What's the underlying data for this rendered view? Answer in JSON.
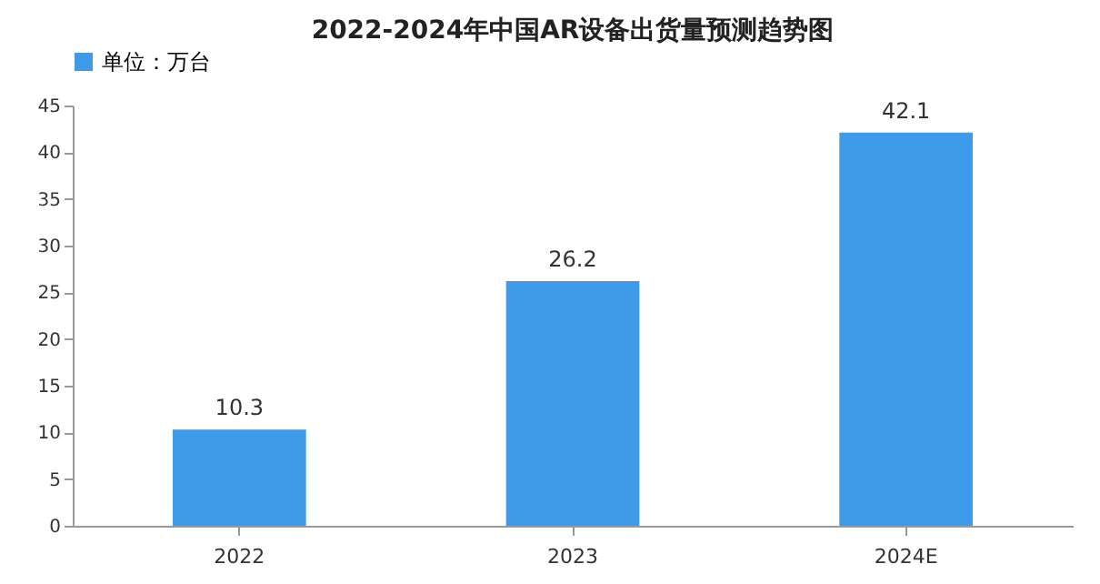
{
  "chart_data": {
    "type": "bar",
    "title": "2022-2024年中国AR设备出货量预测趋势图",
    "categories": [
      "2022",
      "2023",
      "2024E"
    ],
    "series": [
      {
        "name": "单位：万台",
        "color": "#3d9be9",
        "values": [
          10.3,
          26.2,
          42.1
        ]
      }
    ],
    "ylim": [
      0,
      45
    ],
    "yticks": [
      0,
      5,
      10,
      15,
      20,
      25,
      30,
      35,
      40,
      45
    ],
    "data_labels": true,
    "legend": "top",
    "grid": false
  }
}
